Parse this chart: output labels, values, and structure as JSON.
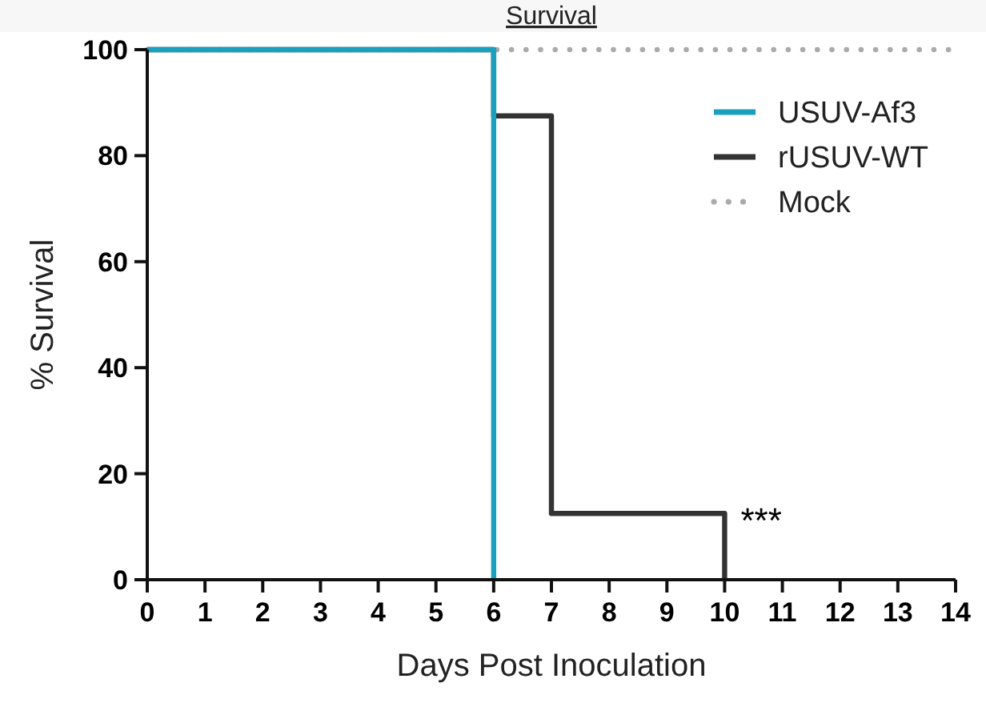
{
  "chart_data": {
    "type": "step",
    "title": "Survival",
    "xlabel": "Days Post Inoculation",
    "ylabel": "% Survival",
    "xlim": [
      0,
      14
    ],
    "xticks": [
      0,
      1,
      2,
      3,
      4,
      5,
      6,
      7,
      8,
      9,
      10,
      11,
      12,
      13,
      14
    ],
    "ylim": [
      0,
      100
    ],
    "yticks": [
      0,
      20,
      40,
      60,
      80,
      100
    ],
    "series": [
      {
        "name": "USUV-Af3",
        "color": "#1b9fbf",
        "x": [
          0,
          6
        ],
        "values": [
          100,
          0
        ],
        "line_style": "solid"
      },
      {
        "name": "rUSUV-WT",
        "color": "#333333",
        "x": [
          0,
          6,
          7,
          10
        ],
        "values": [
          100,
          87.5,
          12.5,
          0
        ],
        "line_style": "solid"
      },
      {
        "name": "Mock",
        "color": "#aaaaaa",
        "x": [
          0,
          14
        ],
        "values": [
          100,
          100
        ],
        "line_style": "dotted"
      }
    ],
    "annotations": [
      {
        "text": "***",
        "x": 10,
        "y": 12.5
      }
    ],
    "legend": "top right",
    "grid": false
  }
}
